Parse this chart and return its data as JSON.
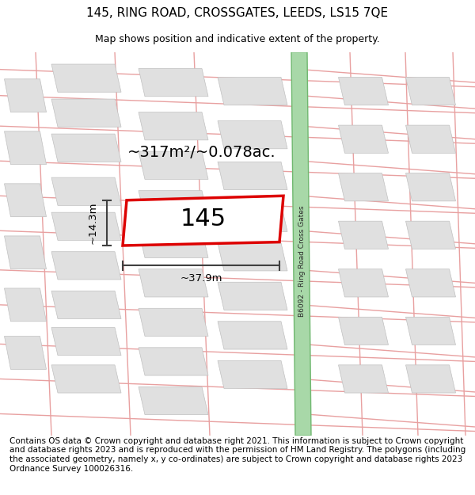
{
  "title": "145, RING ROAD, CROSSGATES, LEEDS, LS15 7QE",
  "subtitle": "Map shows position and indicative extent of the property.",
  "footer": "Contains OS data © Crown copyright and database right 2021. This information is subject to Crown copyright and database rights 2023 and is reproduced with the permission of HM Land Registry. The polygons (including the associated geometry, namely x, y co-ordinates) are subject to Crown copyright and database rights 2023 Ordnance Survey 100026316.",
  "area_text": "~317m²/~0.078ac.",
  "property_label": "145",
  "width_label": "~37.9m",
  "height_label": "~14.3m",
  "road_label": "B6092 - Ring Road Cross Gates",
  "title_fontsize": 11,
  "subtitle_fontsize": 9,
  "footer_fontsize": 7.5,
  "road_color": "#a8d8a8",
  "road_edge_color": "#70b870",
  "road_line_color": "#e8a0a0",
  "bld_fill": "#e0e0e0",
  "bld_edge": "#c0c0c0",
  "prop_edge": "#dd0000",
  "dim_color": "#404040"
}
